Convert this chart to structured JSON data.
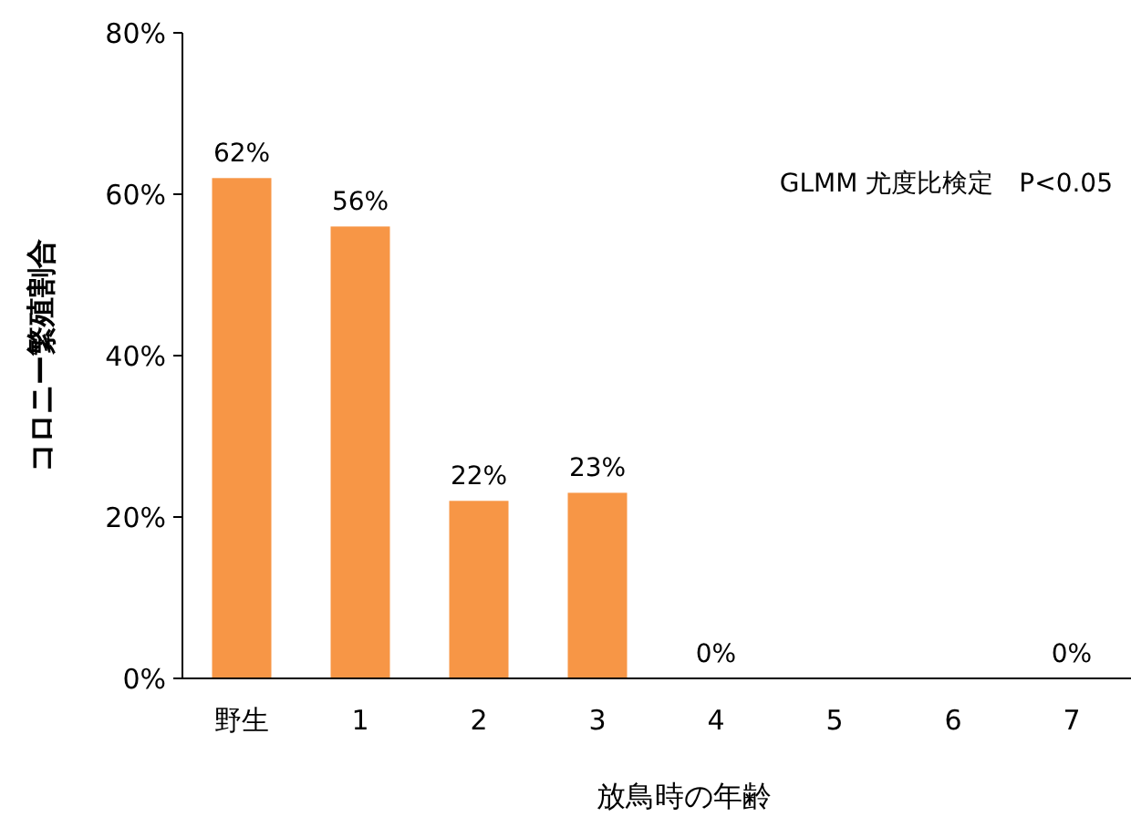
{
  "chart_data": {
    "type": "bar",
    "xlabel": "放鳥時の年齢",
    "ylabel": "コロニー繁殖割合",
    "categories": [
      "野生",
      "1",
      "2",
      "3",
      "4",
      "5",
      "6",
      "7"
    ],
    "values": [
      62,
      56,
      22,
      23,
      0,
      null,
      null,
      0
    ],
    "value_labels": [
      "62%",
      "56%",
      "22%",
      "23%",
      "0%",
      null,
      null,
      "0%"
    ],
    "color": "#f79646",
    "ylim": [
      0,
      80
    ],
    "yticks": [
      {
        "value": 0,
        "label": "0%"
      },
      {
        "value": 20,
        "label": "20%"
      },
      {
        "value": 40,
        "label": "40%"
      },
      {
        "value": 60,
        "label": "60%"
      },
      {
        "value": 80,
        "label": "80%"
      }
    ],
    "annotations": [
      "GLMM 尤度比検定　P<0.05"
    ]
  }
}
